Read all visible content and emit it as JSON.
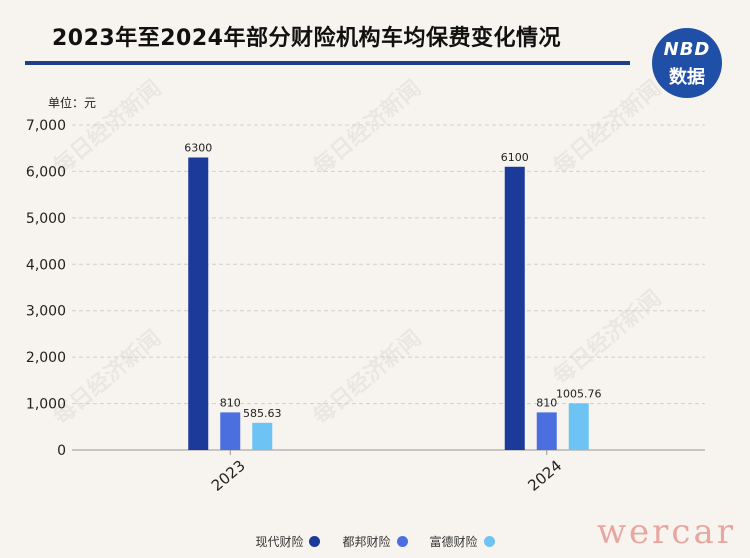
{
  "title": "2023年至2024年部分财险机构车均保费变化情况",
  "unit_label": "单位：元",
  "logo": {
    "line1": "NBD",
    "line2": "数据"
  },
  "watermark_text": "每日经济新闻",
  "corner_mark": "wercar",
  "chart_data": {
    "type": "bar",
    "categories": [
      "2023",
      "2024"
    ],
    "series": [
      {
        "name": "现代财险",
        "color": "#1b3a99",
        "values": [
          6300,
          6100
        ],
        "labels": [
          "6300",
          "6100"
        ]
      },
      {
        "name": "都邦财险",
        "color": "#4c6fe0",
        "values": [
          810,
          810
        ],
        "labels": [
          "810",
          "810"
        ]
      },
      {
        "name": "富德财险",
        "color": "#6ec3f5",
        "values": [
          585.63,
          1005.76
        ],
        "labels": [
          "585.63",
          "1005.76"
        ]
      }
    ],
    "ylim": [
      0,
      7000
    ],
    "yticks": [
      0,
      1000,
      2000,
      3000,
      4000,
      5000,
      6000,
      7000
    ],
    "ytick_labels": [
      "0",
      "1,000",
      "2,000",
      "3,000",
      "4,000",
      "5,000",
      "6,000",
      "7,000"
    ],
    "grid": true,
    "legend_position": "bottom-center"
  }
}
